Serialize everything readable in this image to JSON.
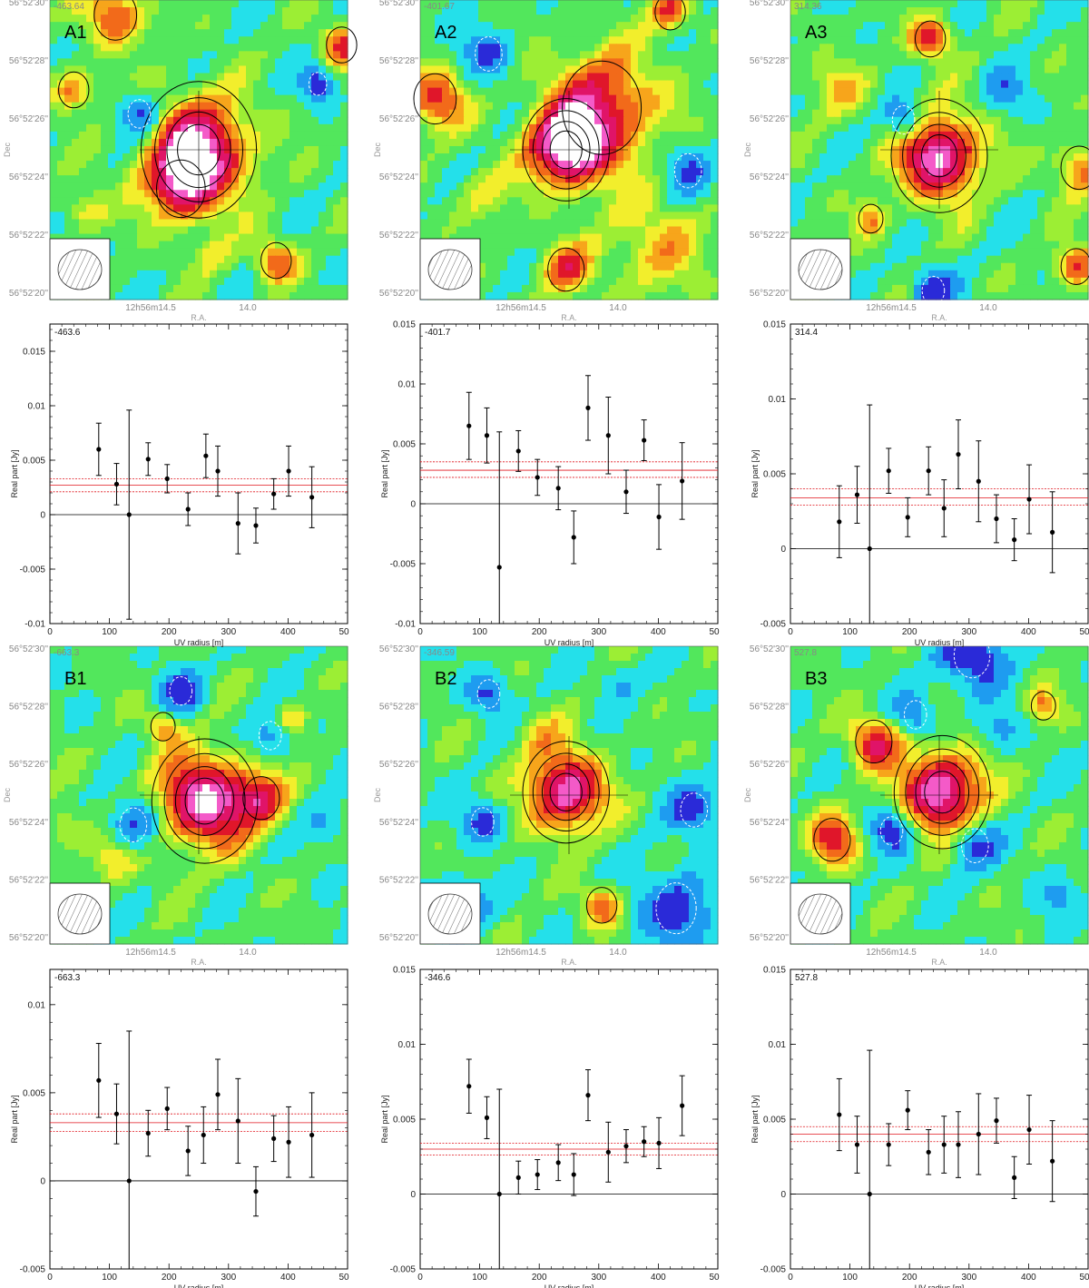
{
  "colors": {
    "map_palette": [
      "#2a2ad8",
      "#1e9cf0",
      "#24e0ea",
      "#52e75c",
      "#9cee34",
      "#f2ee2c",
      "#f7a51b",
      "#f26a1a",
      "#e0162a",
      "#e01468",
      "#f45ac8",
      "#ffffff"
    ],
    "axis": "#000000",
    "flux_line": "#e0141c",
    "contour_pos": "#000000",
    "contour_neg": "#ffffff"
  },
  "map_axes": {
    "dec_ticks": [
      "56°52'30''",
      "56°52'28''",
      "56°52'26''",
      "56°52'24''",
      "56°52'22''",
      "56°52'20''"
    ],
    "ra_ticks": [
      "12h56m14.5",
      "14.0"
    ],
    "ylabel": "Dec",
    "xlabel": "R.A."
  },
  "panels": [
    {
      "label": "A1",
      "corner": "-463.64",
      "ra_label_pos": 2
    },
    {
      "label": "A2",
      "corner": "-401.67",
      "ra_label_pos": 2
    },
    {
      "label": "A3",
      "corner": "314.36",
      "ra_label_pos": 2
    },
    {
      "label": "B1",
      "corner": "-663.3",
      "ra_label_pos": 2
    },
    {
      "label": "B2",
      "corner": "-346.59",
      "ra_label_pos": 2
    },
    {
      "label": "B3",
      "corner": "527.8",
      "ra_label_pos": 2
    }
  ],
  "chart_data": [
    {
      "type": "scatter",
      "name_label": "A1",
      "corner": "-463.6",
      "xlabel": "UV radius [m]",
      "ylabel": "Real part [Jy]",
      "xlim": [
        0,
        500
      ],
      "ylim": [
        -0.01,
        0.0175
      ],
      "yticks": [
        -0.01,
        -0.005,
        0,
        0.005,
        0.01,
        0.015
      ],
      "yticklabels": [
        "-0.01",
        "-0.005",
        "0",
        "0.005",
        "0.01",
        "0.015"
      ],
      "xticklabels": [
        "0",
        "100",
        "200",
        "300",
        "400",
        "50"
      ],
      "flux": {
        "value": 0.0027,
        "low": 0.0021,
        "high": 0.0033
      },
      "points": [
        [
          82,
          0.006,
          0.0024
        ],
        [
          112,
          0.0028,
          0.0019
        ],
        [
          133,
          0.0,
          0.0096
        ],
        [
          165,
          0.0051,
          0.0015
        ],
        [
          197,
          0.0033,
          0.0013
        ],
        [
          232,
          0.0005,
          0.0015
        ],
        [
          262,
          0.0054,
          0.002
        ],
        [
          282,
          0.004,
          0.0023
        ],
        [
          316,
          -0.0008,
          0.0028
        ],
        [
          346,
          -0.001,
          0.0016
        ],
        [
          376,
          0.0019,
          0.0014
        ],
        [
          401,
          0.004,
          0.0023
        ],
        [
          440,
          0.0016,
          0.0028
        ]
      ]
    },
    {
      "type": "scatter",
      "name_label": "A2",
      "corner": "-401.7",
      "xlabel": "UV radius [m]",
      "ylabel": "Real part [Jy]",
      "xlim": [
        0,
        500
      ],
      "ylim": [
        -0.01,
        0.015
      ],
      "yticks": [
        -0.01,
        -0.005,
        0,
        0.005,
        0.01,
        0.015
      ],
      "yticklabels": [
        "-0.01",
        "-0.005",
        "0",
        "0.005",
        "0.01",
        "0.015"
      ],
      "xticklabels": [
        "0",
        "100",
        "200",
        "300",
        "400",
        "50"
      ],
      "flux": {
        "value": 0.0028,
        "low": 0.0022,
        "high": 0.0035
      },
      "points": [
        [
          82,
          0.0065,
          0.0028
        ],
        [
          112,
          0.0057,
          0.0023
        ],
        [
          133,
          -0.0053,
          0.0113
        ],
        [
          165,
          0.0044,
          0.0017
        ],
        [
          197,
          0.0022,
          0.0015
        ],
        [
          232,
          0.0013,
          0.0018
        ],
        [
          258,
          -0.0028,
          0.0022
        ],
        [
          282,
          0.008,
          0.0027
        ],
        [
          316,
          0.0057,
          0.0032
        ],
        [
          346,
          0.001,
          0.0018
        ],
        [
          376,
          0.0053,
          0.0017
        ],
        [
          401,
          -0.0011,
          0.0027
        ],
        [
          440,
          0.0019,
          0.0032
        ]
      ]
    },
    {
      "type": "scatter",
      "name_label": "A3",
      "corner": "314.4",
      "xlabel": "UV radius [m]",
      "ylabel": "Real part [Jy]",
      "xlim": [
        0,
        500
      ],
      "ylim": [
        -0.005,
        0.015
      ],
      "yticks": [
        -0.005,
        0,
        0.005,
        0.01,
        0.015
      ],
      "yticklabels": [
        "-0.005",
        "0",
        "0.005",
        "0.01",
        "0.015"
      ],
      "xticklabels": [
        "0",
        "100",
        "200",
        "300",
        "400",
        "50"
      ],
      "flux": {
        "value": 0.0034,
        "low": 0.0029,
        "high": 0.004
      },
      "points": [
        [
          82,
          0.0018,
          0.0024
        ],
        [
          112,
          0.0036,
          0.0019
        ],
        [
          133,
          0.0,
          0.0096
        ],
        [
          165,
          0.0052,
          0.0015
        ],
        [
          197,
          0.0021,
          0.0013
        ],
        [
          232,
          0.0052,
          0.0016
        ],
        [
          258,
          0.0027,
          0.0019
        ],
        [
          282,
          0.0063,
          0.0023
        ],
        [
          316,
          0.0045,
          0.0027
        ],
        [
          346,
          0.002,
          0.0016
        ],
        [
          376,
          0.0006,
          0.0014
        ],
        [
          401,
          0.0033,
          0.0023
        ],
        [
          440,
          0.0011,
          0.0027
        ]
      ]
    },
    {
      "type": "scatter",
      "name_label": "B1",
      "corner": "-663.3",
      "xlabel": "UV radius [m]",
      "ylabel": "Real part [Jy]",
      "xlim": [
        0,
        500
      ],
      "ylim": [
        -0.005,
        0.012
      ],
      "yticks": [
        -0.005,
        0,
        0.005,
        0.01
      ],
      "yticklabels": [
        "-0.005",
        "0",
        "0.005",
        "0.01"
      ],
      "xticklabels": [
        "0",
        "100",
        "200",
        "300",
        "400",
        "50"
      ],
      "flux": {
        "value": 0.0033,
        "low": 0.0028,
        "high": 0.0038
      },
      "points": [
        [
          82,
          0.0057,
          0.0021
        ],
        [
          112,
          0.0038,
          0.0017
        ],
        [
          133,
          0.0,
          0.0085
        ],
        [
          165,
          0.0027,
          0.0013
        ],
        [
          197,
          0.0041,
          0.0012
        ],
        [
          232,
          0.0017,
          0.0014
        ],
        [
          258,
          0.0026,
          0.0016
        ],
        [
          282,
          0.0049,
          0.002
        ],
        [
          316,
          0.0034,
          0.0024
        ],
        [
          346,
          -0.0006,
          0.0014
        ],
        [
          376,
          0.0024,
          0.0013
        ],
        [
          401,
          0.0022,
          0.002
        ],
        [
          440,
          0.0026,
          0.0024
        ]
      ]
    },
    {
      "type": "scatter",
      "name_label": "B2",
      "corner": "-346.6",
      "xlabel": "UV radius [m]",
      "ylabel": "Real part [Jy]",
      "xlim": [
        0,
        500
      ],
      "ylim": [
        -0.005,
        0.015
      ],
      "yticks": [
        -0.005,
        0,
        0.005,
        0.01,
        0.015
      ],
      "yticklabels": [
        "-0.005",
        "0",
        "0.005",
        "0.01",
        "0.015"
      ],
      "xticklabels": [
        "0",
        "100",
        "200",
        "300",
        "400",
        "50"
      ],
      "flux": {
        "value": 0.003,
        "low": 0.0026,
        "high": 0.0034
      },
      "points": [
        [
          82,
          0.0072,
          0.0018
        ],
        [
          112,
          0.0051,
          0.0014
        ],
        [
          133,
          0.0,
          0.007
        ],
        [
          165,
          0.0011,
          0.0011
        ],
        [
          197,
          0.0013,
          0.001
        ],
        [
          232,
          0.0021,
          0.0012
        ],
        [
          258,
          0.0013,
          0.0014
        ],
        [
          282,
          0.0066,
          0.0017
        ],
        [
          316,
          0.0028,
          0.002
        ],
        [
          346,
          0.0032,
          0.0011
        ],
        [
          376,
          0.0035,
          0.001
        ],
        [
          401,
          0.0034,
          0.0017
        ],
        [
          440,
          0.0059,
          0.002
        ]
      ]
    },
    {
      "type": "scatter",
      "name_label": "B3",
      "corner": "527.8",
      "xlabel": "UV radius [m]",
      "ylabel": "Real part [Jy]",
      "xlim": [
        0,
        500
      ],
      "ylim": [
        -0.005,
        0.015
      ],
      "yticks": [
        -0.005,
        0,
        0.005,
        0.01,
        0.015
      ],
      "yticklabels": [
        "-0.005",
        "0",
        "0.005",
        "0.01",
        "0.015"
      ],
      "xticklabels": [
        "0",
        "100",
        "200",
        "300",
        "400",
        "50"
      ],
      "flux": {
        "value": 0.004,
        "low": 0.0035,
        "high": 0.0045
      },
      "points": [
        [
          82,
          0.0053,
          0.0024
        ],
        [
          112,
          0.0033,
          0.0019
        ],
        [
          133,
          0.0,
          0.0096
        ],
        [
          165,
          0.0033,
          0.0014
        ],
        [
          197,
          0.0056,
          0.0013
        ],
        [
          232,
          0.0028,
          0.0015
        ],
        [
          258,
          0.0033,
          0.0019
        ],
        [
          282,
          0.0033,
          0.0022
        ],
        [
          316,
          0.004,
          0.0027
        ],
        [
          346,
          0.0049,
          0.0015
        ],
        [
          376,
          0.0011,
          0.0014
        ],
        [
          401,
          0.0043,
          0.0023
        ],
        [
          440,
          0.0022,
          0.0027
        ]
      ]
    }
  ]
}
